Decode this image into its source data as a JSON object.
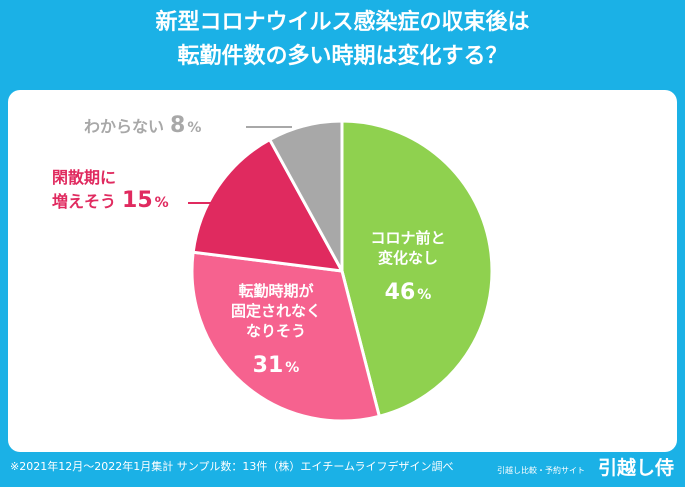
{
  "title": {
    "line1": "新型コロナウイルス感染症の収束後は",
    "line2": "転勤件数の多い時期は変化する？"
  },
  "chart_data": {
    "type": "pie",
    "title": "新型コロナウイルス感染症の収束後は転勤件数の多い時期は変化する？",
    "slices": [
      {
        "label_lines": [
          "コロナ前と",
          "変化なし"
        ],
        "value": 46,
        "value_text": "46",
        "unit": "%",
        "color": "#8fd14f",
        "label_position": "inside"
      },
      {
        "label_lines": [
          "転勤時期が",
          "固定されなく",
          "なりそう"
        ],
        "value": 31,
        "value_text": "31",
        "unit": "%",
        "color": "#f6628f",
        "label_position": "inside"
      },
      {
        "label_lines": [
          "閑散期に",
          "増えそう"
        ],
        "value": 15,
        "value_text": "15",
        "unit": "%",
        "color": "#e02a5f",
        "label_position": "outside-left"
      },
      {
        "label_lines": [
          "わからない"
        ],
        "value": 8,
        "value_text": "8",
        "unit": "%",
        "color": "#a8a8a8",
        "label_position": "outside-left"
      }
    ]
  },
  "footer": {
    "note": "※2021年12月～2022年1月集計 サンプル数：13件（株）エイチームライフデザイン調べ",
    "brand_sub": "引越し比較・予約サイト",
    "brand_logo": "引越し侍"
  }
}
